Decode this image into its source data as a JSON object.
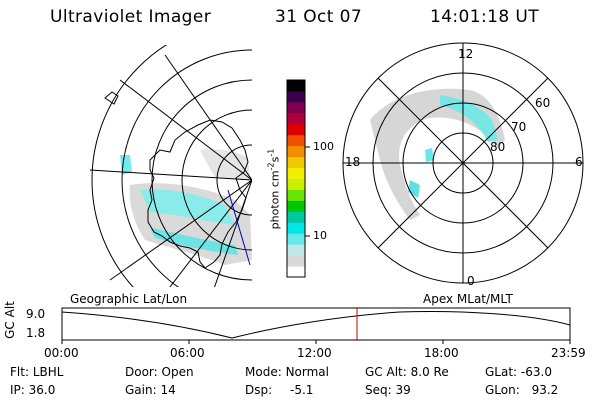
{
  "header": {
    "instrument": "Ultraviolet Imager",
    "date": "31 Oct 07",
    "time": "14:01:18 UT"
  },
  "colorbar": {
    "unit_label": "photon cm",
    "unit_exp1": "-2",
    "unit_s": "s",
    "unit_exp2": "-1",
    "tick_100": "100",
    "tick_10": "10",
    "colors": [
      "#ffffff",
      "#d9d9d9",
      "#bfe8e8",
      "#66e8e8",
      "#00e5e5",
      "#00c8a0",
      "#00c800",
      "#66e600",
      "#c8f000",
      "#f0f000",
      "#f0c800",
      "#f09000",
      "#f05000",
      "#e00000",
      "#b0003c",
      "#800050",
      "#3c0050",
      "#000000"
    ]
  },
  "polar_map": {
    "labels": {
      "mlt_top": "12",
      "mlt_bottom": "0",
      "mlt_left": "18",
      "mlt_right": "6",
      "lat_60": "60",
      "lat_70": "70",
      "lat_80": "80"
    }
  },
  "orbit_plot": {
    "left_caption": "Geographic Lat/Lon",
    "right_caption": "Apex MLat/MLT",
    "y_axis_label": "GC Alt",
    "y_ticks": [
      "9.0",
      "1.8"
    ],
    "x_ticks": [
      "00:00",
      "06:00",
      "12:00",
      "18:00",
      "23:59"
    ],
    "current_time_marker": "14:01",
    "marker_color": "#cc0000"
  },
  "status": {
    "filter_label": "Flt:",
    "filter_value": "LBHL",
    "ip_label": "IP:",
    "ip_value": "36.0",
    "door_label": "Door:",
    "door_value": "Open",
    "gain_label": "Gain:",
    "gain_value": "14",
    "mode_label": "Mode:",
    "mode_value": "Normal",
    "dsp_label": "Dsp:",
    "dsp_value": "-5.1",
    "gcalt_label": "GC Alt:",
    "gcalt_value": "8.0 Re",
    "seq_label": "Seq:",
    "seq_value": "39",
    "glat_label": "GLat:",
    "glat_value": "-63.0",
    "glon_label": "GLon:",
    "glon_value": "93.2"
  }
}
